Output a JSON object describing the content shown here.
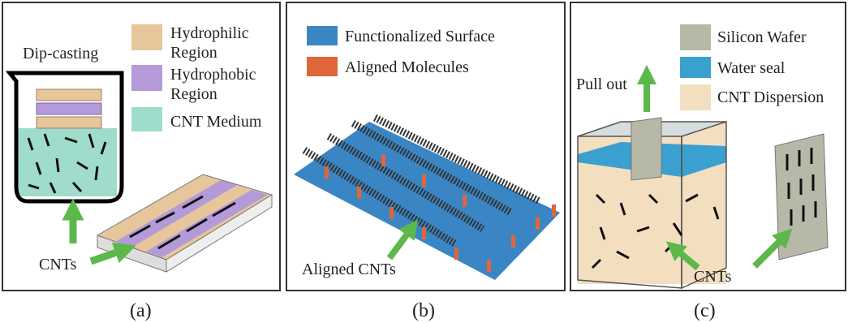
{
  "panels": [
    {
      "title": "Dip-casting",
      "legend": [
        {
          "lines": [
            "Hydrophilic",
            "Region"
          ]
        },
        {
          "lines": [
            "Hydrophobic",
            "Region"
          ]
        },
        {
          "lines": [
            "CNT Medium"
          ]
        }
      ],
      "labels": [
        "CNTs"
      ],
      "caption": "(a)"
    },
    {
      "legend": [
        {
          "lines": [
            "Functionalized Surface"
          ]
        },
        {
          "lines": [
            "Aligned Molecules"
          ]
        }
      ],
      "labels": [
        "Aligned CNTs"
      ],
      "caption": "(b)"
    },
    {
      "legend": [
        {
          "lines": [
            "Silicon Wafer"
          ]
        },
        {
          "lines": [
            "Water seal"
          ]
        },
        {
          "lines": [
            "CNT Dispersion"
          ]
        }
      ],
      "labels": [
        "Pull out",
        "CNTs"
      ],
      "caption": "(c)"
    }
  ]
}
